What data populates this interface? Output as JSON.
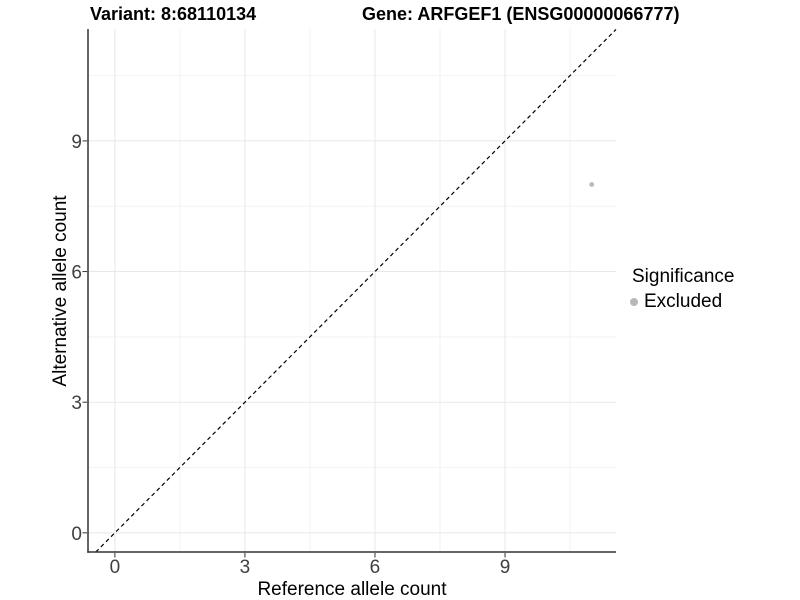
{
  "chart_data": {
    "type": "scatter",
    "title_left": "Variant: 8:68110134",
    "title_right": "Gene: ARFGEF1 (ENSG00000066777)",
    "xlabel": "Reference allele count",
    "ylabel": "Alternative allele count",
    "xlim": [
      -0.62,
      11.56
    ],
    "ylim": [
      -0.44,
      11.57
    ],
    "xticks": [
      0,
      3,
      6,
      9
    ],
    "yticks": [
      0,
      3,
      6,
      9
    ],
    "xminor": [
      1.5,
      4.5,
      7.5,
      10.5
    ],
    "yminor": [
      1.5,
      4.5,
      7.5,
      10.5
    ],
    "grid": true,
    "diagonal": {
      "slope": 1,
      "intercept": 0,
      "style": "dashed"
    },
    "series": [
      {
        "name": "Excluded",
        "points": [
          {
            "x": 11,
            "y": 8
          }
        ]
      }
    ],
    "legend": {
      "title": "Significance",
      "position": "right",
      "entries": [
        {
          "label": "Excluded"
        }
      ]
    }
  },
  "colors": {
    "grid_major": "#e8e8e8",
    "grid_minor": "#f2f2f2",
    "axis_line": "#333333",
    "tick_text": "#404040",
    "axis_title_text": "#000000",
    "point": "#b9b9b9",
    "legend_dot": "#b9b9b9",
    "diagonal": "#000000"
  }
}
